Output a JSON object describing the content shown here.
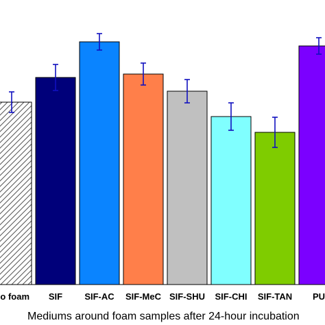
{
  "chart_data": {
    "type": "bar",
    "xlabel": "Mediums around foam samples after 24-hour incubation",
    "ylabel": "",
    "title": "",
    "ylim": [
      0,
      390
    ],
    "grid": false,
    "legend": "none",
    "categories": [
      "No foam",
      "SIF",
      "SIF-AC",
      "SIF-MeC",
      "SIF-SHU",
      "SIF-CHI",
      "SIF-TAN",
      "PU"
    ],
    "values": [
      266,
      302,
      354,
      307,
      282,
      245,
      222,
      348
    ],
    "errors": [
      15,
      19,
      12,
      16,
      17,
      20,
      22,
      12
    ],
    "colors": [
      "hatched",
      "#00007a",
      "#0a84ff",
      "#ff7f4a",
      "#c0c0c0",
      "#80ffff",
      "#7fcc00",
      "#7b00ff"
    ]
  }
}
